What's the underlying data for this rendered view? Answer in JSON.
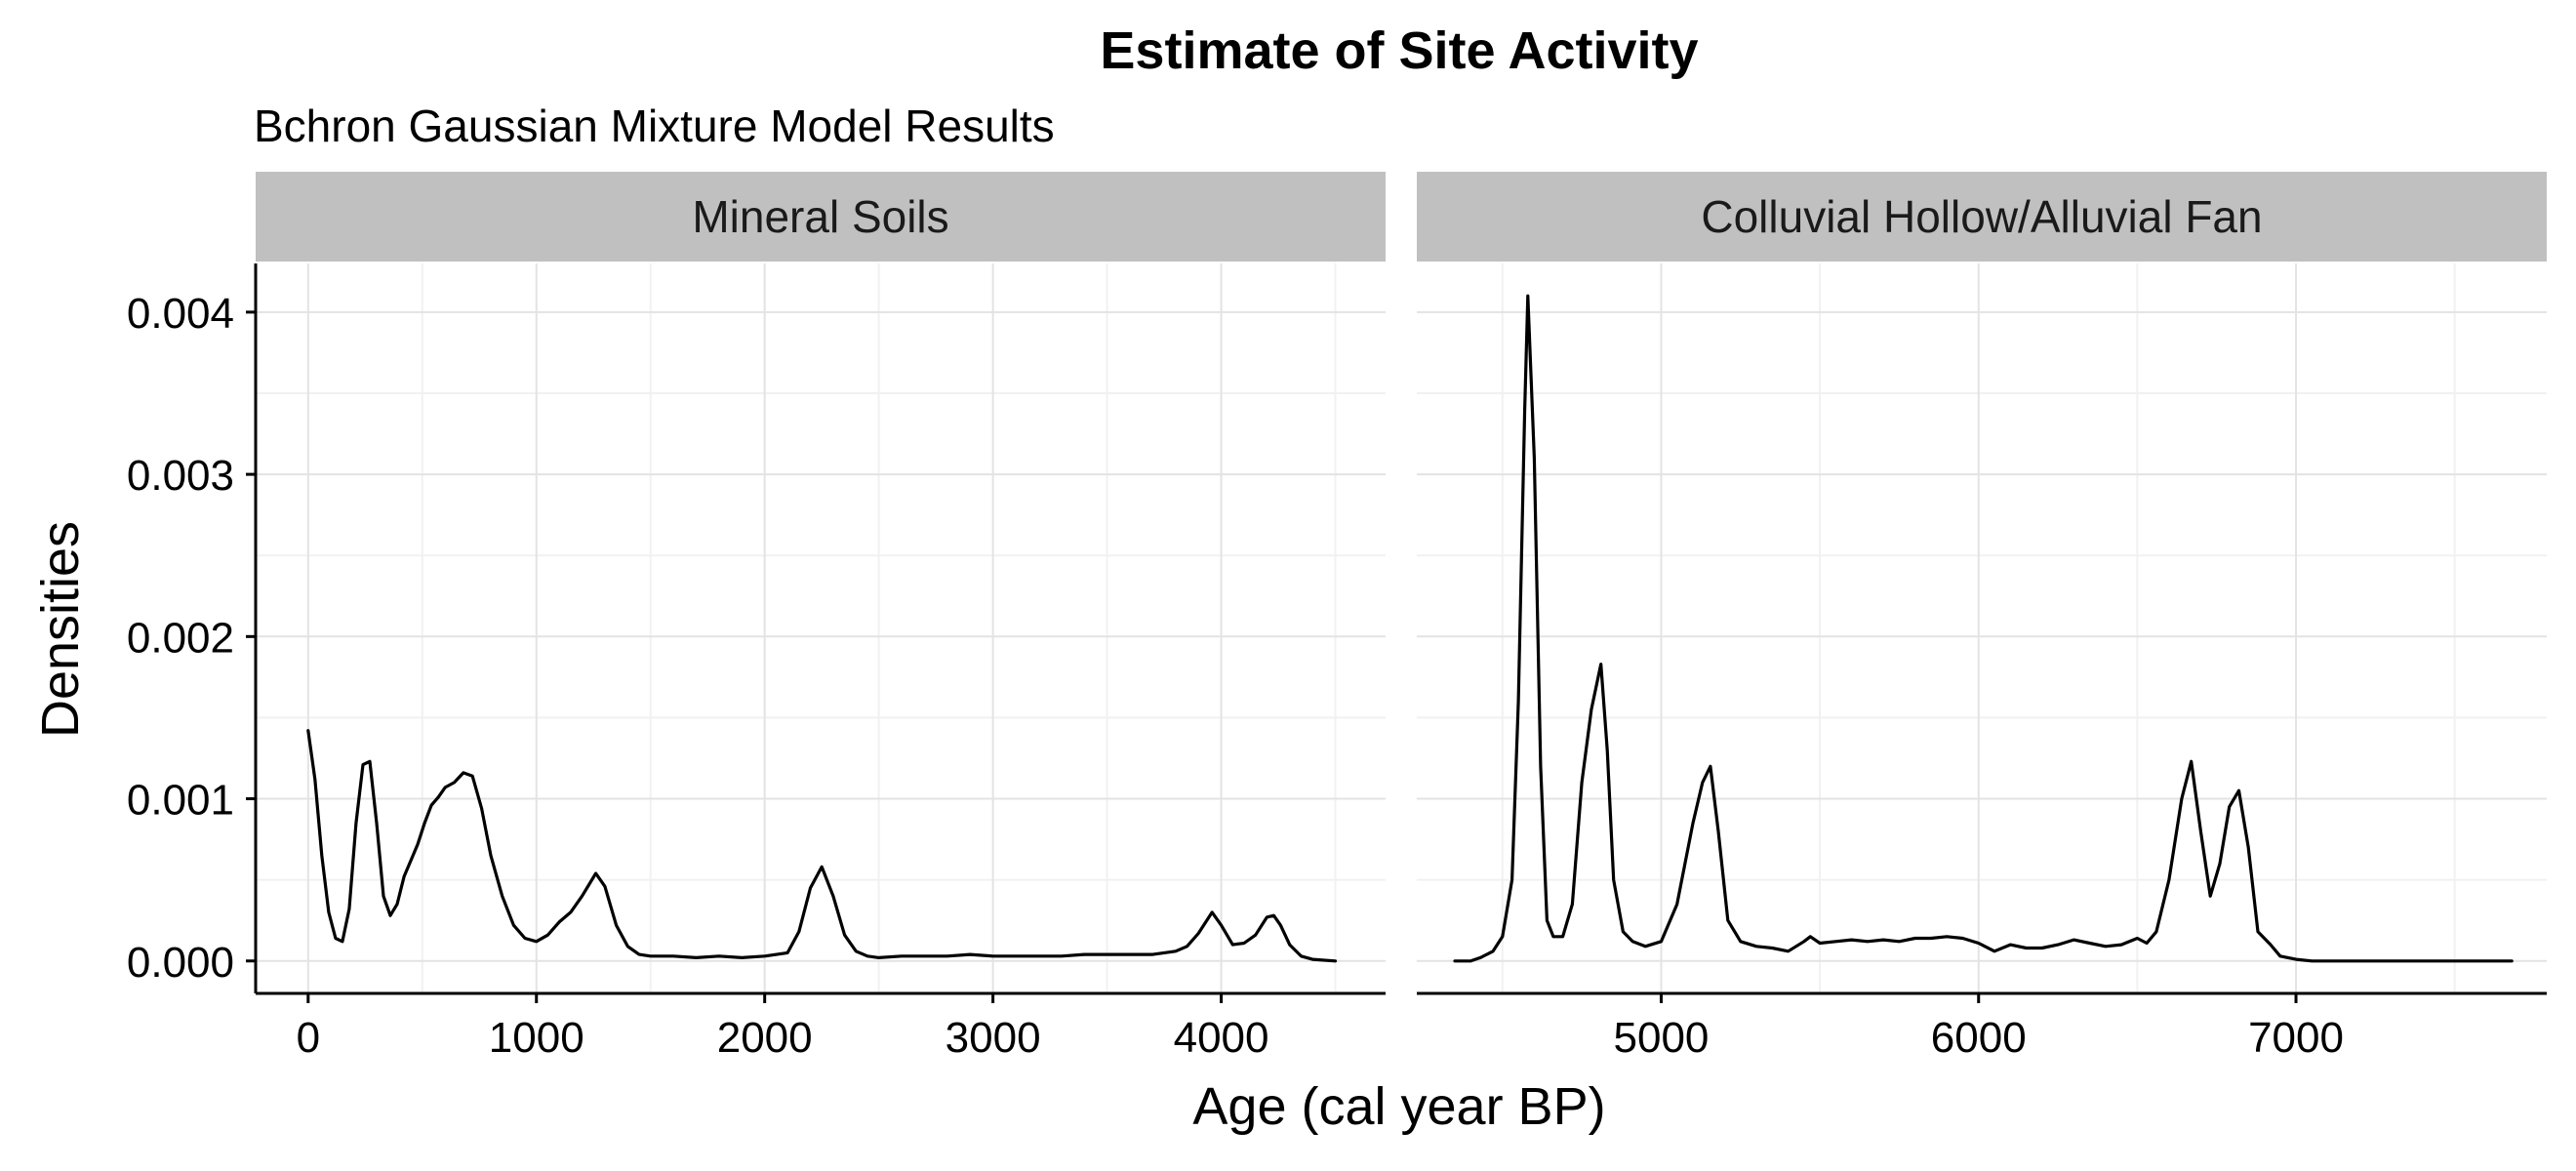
{
  "chart_data": {
    "type": "line",
    "title": "Estimate of Site Activity",
    "subtitle": "Bchron Gaussian Mixture Model Results",
    "xlabel": "Age (cal year BP)",
    "ylabel": "Densities",
    "grid": true,
    "legend": "none",
    "line_color": "#000000",
    "strip_color": "#c0c0c0",
    "grid_major_color": "#e3e3e3",
    "grid_minor_color": "#f1f1f1",
    "ylim": [
      -0.0002,
      0.0043
    ],
    "yticks": [
      0,
      0.001,
      0.002,
      0.003,
      0.004
    ],
    "ytick_labels": [
      "0.000",
      "0.001",
      "0.002",
      "0.003",
      "0.004"
    ],
    "panels": [
      {
        "label": "Mineral Soils",
        "xlim": [
          -230,
          4720
        ],
        "xticks": [
          0,
          1000,
          2000,
          3000,
          4000
        ],
        "xtick_labels": [
          "0",
          "1000",
          "2000",
          "3000",
          "4000"
        ],
        "series": [
          {
            "x": [
              0,
              30,
              60,
              90,
              120,
              150,
              180,
              210,
              240,
              270,
              300,
              330,
              360,
              390,
              420,
              450,
              480,
              510,
              540,
              570,
              600,
              640,
              680,
              720,
              760,
              800,
              850,
              900,
              950,
              1000,
              1050,
              1100,
              1150,
              1200,
              1260,
              1300,
              1350,
              1400,
              1450,
              1500,
              1600,
              1700,
              1800,
              1900,
              2000,
              2100,
              2150,
              2200,
              2250,
              2300,
              2350,
              2400,
              2450,
              2500,
              2600,
              2700,
              2800,
              2900,
              3000,
              3100,
              3200,
              3300,
              3400,
              3500,
              3600,
              3700,
              3750,
              3800,
              3850,
              3900,
              3960,
              4000,
              4050,
              4100,
              4150,
              4200,
              4230,
              4260,
              4300,
              4350,
              4400,
              4500
            ],
            "y": [
              0.00142,
              0.00112,
              0.00065,
              0.0003,
              0.00014,
              0.00012,
              0.00032,
              0.00085,
              0.00121,
              0.00123,
              0.00085,
              0.0004,
              0.00028,
              0.00035,
              0.00052,
              0.00062,
              0.00072,
              0.00085,
              0.00096,
              0.00101,
              0.00107,
              0.0011,
              0.00116,
              0.00114,
              0.00094,
              0.00065,
              0.0004,
              0.00022,
              0.00014,
              0.00012,
              0.00016,
              0.00024,
              0.0003,
              0.0004,
              0.00054,
              0.00046,
              0.00022,
              9e-05,
              4e-05,
              3e-05,
              3e-05,
              2e-05,
              3e-05,
              2e-05,
              3e-05,
              5e-05,
              0.00018,
              0.00045,
              0.00058,
              0.0004,
              0.00016,
              6e-05,
              3e-05,
              2e-05,
              3e-05,
              3e-05,
              3e-05,
              4e-05,
              3e-05,
              3e-05,
              3e-05,
              3e-05,
              4e-05,
              4e-05,
              4e-05,
              4e-05,
              5e-05,
              6e-05,
              9e-05,
              0.00017,
              0.0003,
              0.00022,
              0.0001,
              0.00011,
              0.00016,
              0.00027,
              0.00028,
              0.00022,
              0.0001,
              3e-05,
              1e-05,
              0
            ]
          }
        ]
      },
      {
        "label": "Colluvial Hollow/Alluvial Fan",
        "xlim": [
          4230,
          7790
        ],
        "xticks": [
          5000,
          6000,
          7000
        ],
        "xtick_labels": [
          "5000",
          "6000",
          "7000"
        ],
        "series": [
          {
            "x": [
              4350,
              4400,
              4430,
              4470,
              4500,
              4530,
              4550,
              4570,
              4580,
              4600,
              4620,
              4640,
              4660,
              4690,
              4720,
              4750,
              4780,
              4810,
              4830,
              4850,
              4880,
              4910,
              4950,
              5000,
              5050,
              5100,
              5130,
              5155,
              5180,
              5210,
              5250,
              5300,
              5350,
              5400,
              5450,
              5470,
              5500,
              5550,
              5600,
              5650,
              5700,
              5750,
              5800,
              5850,
              5900,
              5950,
              6000,
              6050,
              6100,
              6150,
              6200,
              6250,
              6300,
              6350,
              6400,
              6450,
              6500,
              6530,
              6560,
              6600,
              6640,
              6670,
              6700,
              6730,
              6760,
              6790,
              6820,
              6850,
              6880,
              6920,
              6950,
              7000,
              7050,
              7100,
              7200,
              7300,
              7400,
              7500,
              7600,
              7680
            ],
            "y": [
              0,
              0,
              2e-05,
              6e-05,
              0.00015,
              0.0005,
              0.0016,
              0.0034,
              0.0041,
              0.0031,
              0.0012,
              0.00025,
              0.00015,
              0.00015,
              0.00035,
              0.0011,
              0.00155,
              0.00183,
              0.0013,
              0.0005,
              0.00018,
              0.00012,
              9e-05,
              0.00012,
              0.00035,
              0.00085,
              0.0011,
              0.0012,
              0.0008,
              0.00025,
              0.00012,
              9e-05,
              8e-05,
              6e-05,
              0.00012,
              0.00015,
              0.00011,
              0.00012,
              0.00013,
              0.00012,
              0.00013,
              0.00012,
              0.00014,
              0.00014,
              0.00015,
              0.00014,
              0.00011,
              6e-05,
              0.0001,
              8e-05,
              8e-05,
              0.0001,
              0.00013,
              0.00011,
              9e-05,
              0.0001,
              0.00014,
              0.00011,
              0.00018,
              0.0005,
              0.001,
              0.00123,
              0.0008,
              0.0004,
              0.0006,
              0.00095,
              0.00105,
              0.0007,
              0.00018,
              0.0001,
              3e-05,
              1e-05,
              0,
              0,
              0,
              0,
              0,
              0,
              0,
              0
            ]
          }
        ]
      }
    ]
  }
}
